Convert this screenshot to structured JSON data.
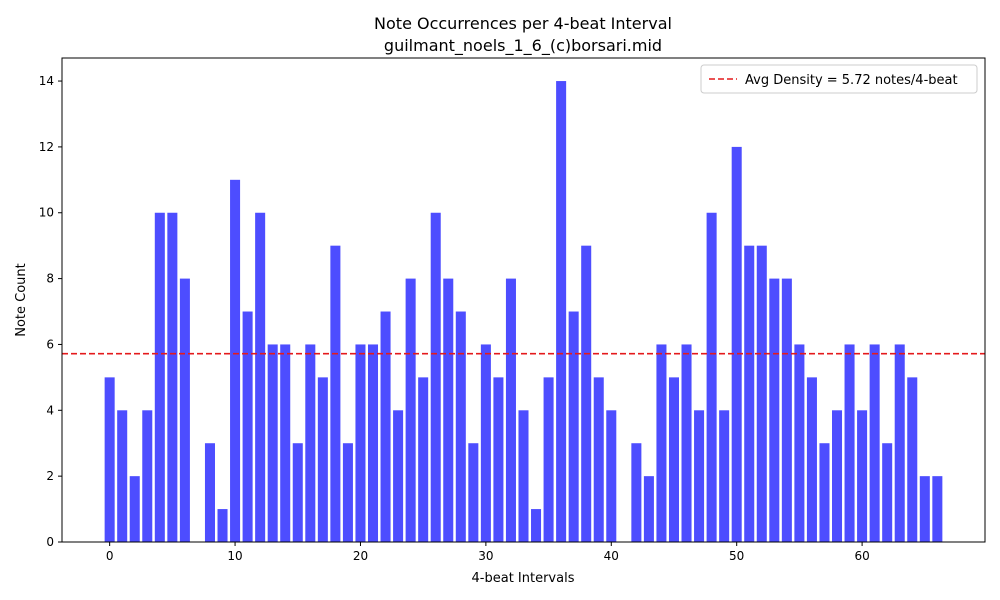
{
  "chart_data": {
    "type": "bar",
    "title": "Note Occurrences per 4-beat Interval",
    "subtitle": "guilmant_noels_1_6_(c)borsari.mid",
    "xlabel": "4-beat Intervals",
    "ylabel": "Note Count",
    "x": [
      0,
      1,
      2,
      3,
      4,
      5,
      6,
      7,
      8,
      9,
      10,
      11,
      12,
      13,
      14,
      15,
      16,
      17,
      18,
      19,
      20,
      21,
      22,
      23,
      24,
      25,
      26,
      27,
      28,
      29,
      30,
      31,
      32,
      33,
      34,
      35,
      36,
      37,
      38,
      39,
      40,
      41,
      42,
      43,
      44,
      45,
      46,
      47,
      48,
      49,
      50,
      51,
      52,
      53,
      54,
      55,
      56,
      57,
      58,
      59,
      60,
      61,
      62,
      63,
      64,
      65,
      66
    ],
    "values": [
      5,
      4,
      2,
      4,
      10,
      10,
      8,
      0,
      3,
      1,
      11,
      7,
      10,
      6,
      6,
      3,
      6,
      5,
      9,
      3,
      6,
      6,
      7,
      4,
      8,
      5,
      10,
      8,
      7,
      3,
      6,
      5,
      8,
      4,
      1,
      5,
      14,
      7,
      9,
      5,
      4,
      0,
      3,
      2,
      6,
      5,
      6,
      4,
      10,
      4,
      12,
      9,
      9,
      8,
      8,
      6,
      5,
      3,
      4,
      6,
      4,
      6,
      3,
      6,
      5,
      2,
      2
    ],
    "xlim": [
      -3.8,
      69.8
    ],
    "ylim": [
      0,
      14.7
    ],
    "xticks": [
      0,
      10,
      20,
      30,
      40,
      50,
      60
    ],
    "yticks": [
      0,
      2,
      4,
      6,
      8,
      10,
      12,
      14
    ],
    "bar_color": "#4d4dff",
    "average_line": {
      "value": 5.72,
      "label": "Avg Density = 5.72 notes/4-beat",
      "color": "#e41a1c"
    },
    "legend_position": "top-right",
    "grid": false
  }
}
